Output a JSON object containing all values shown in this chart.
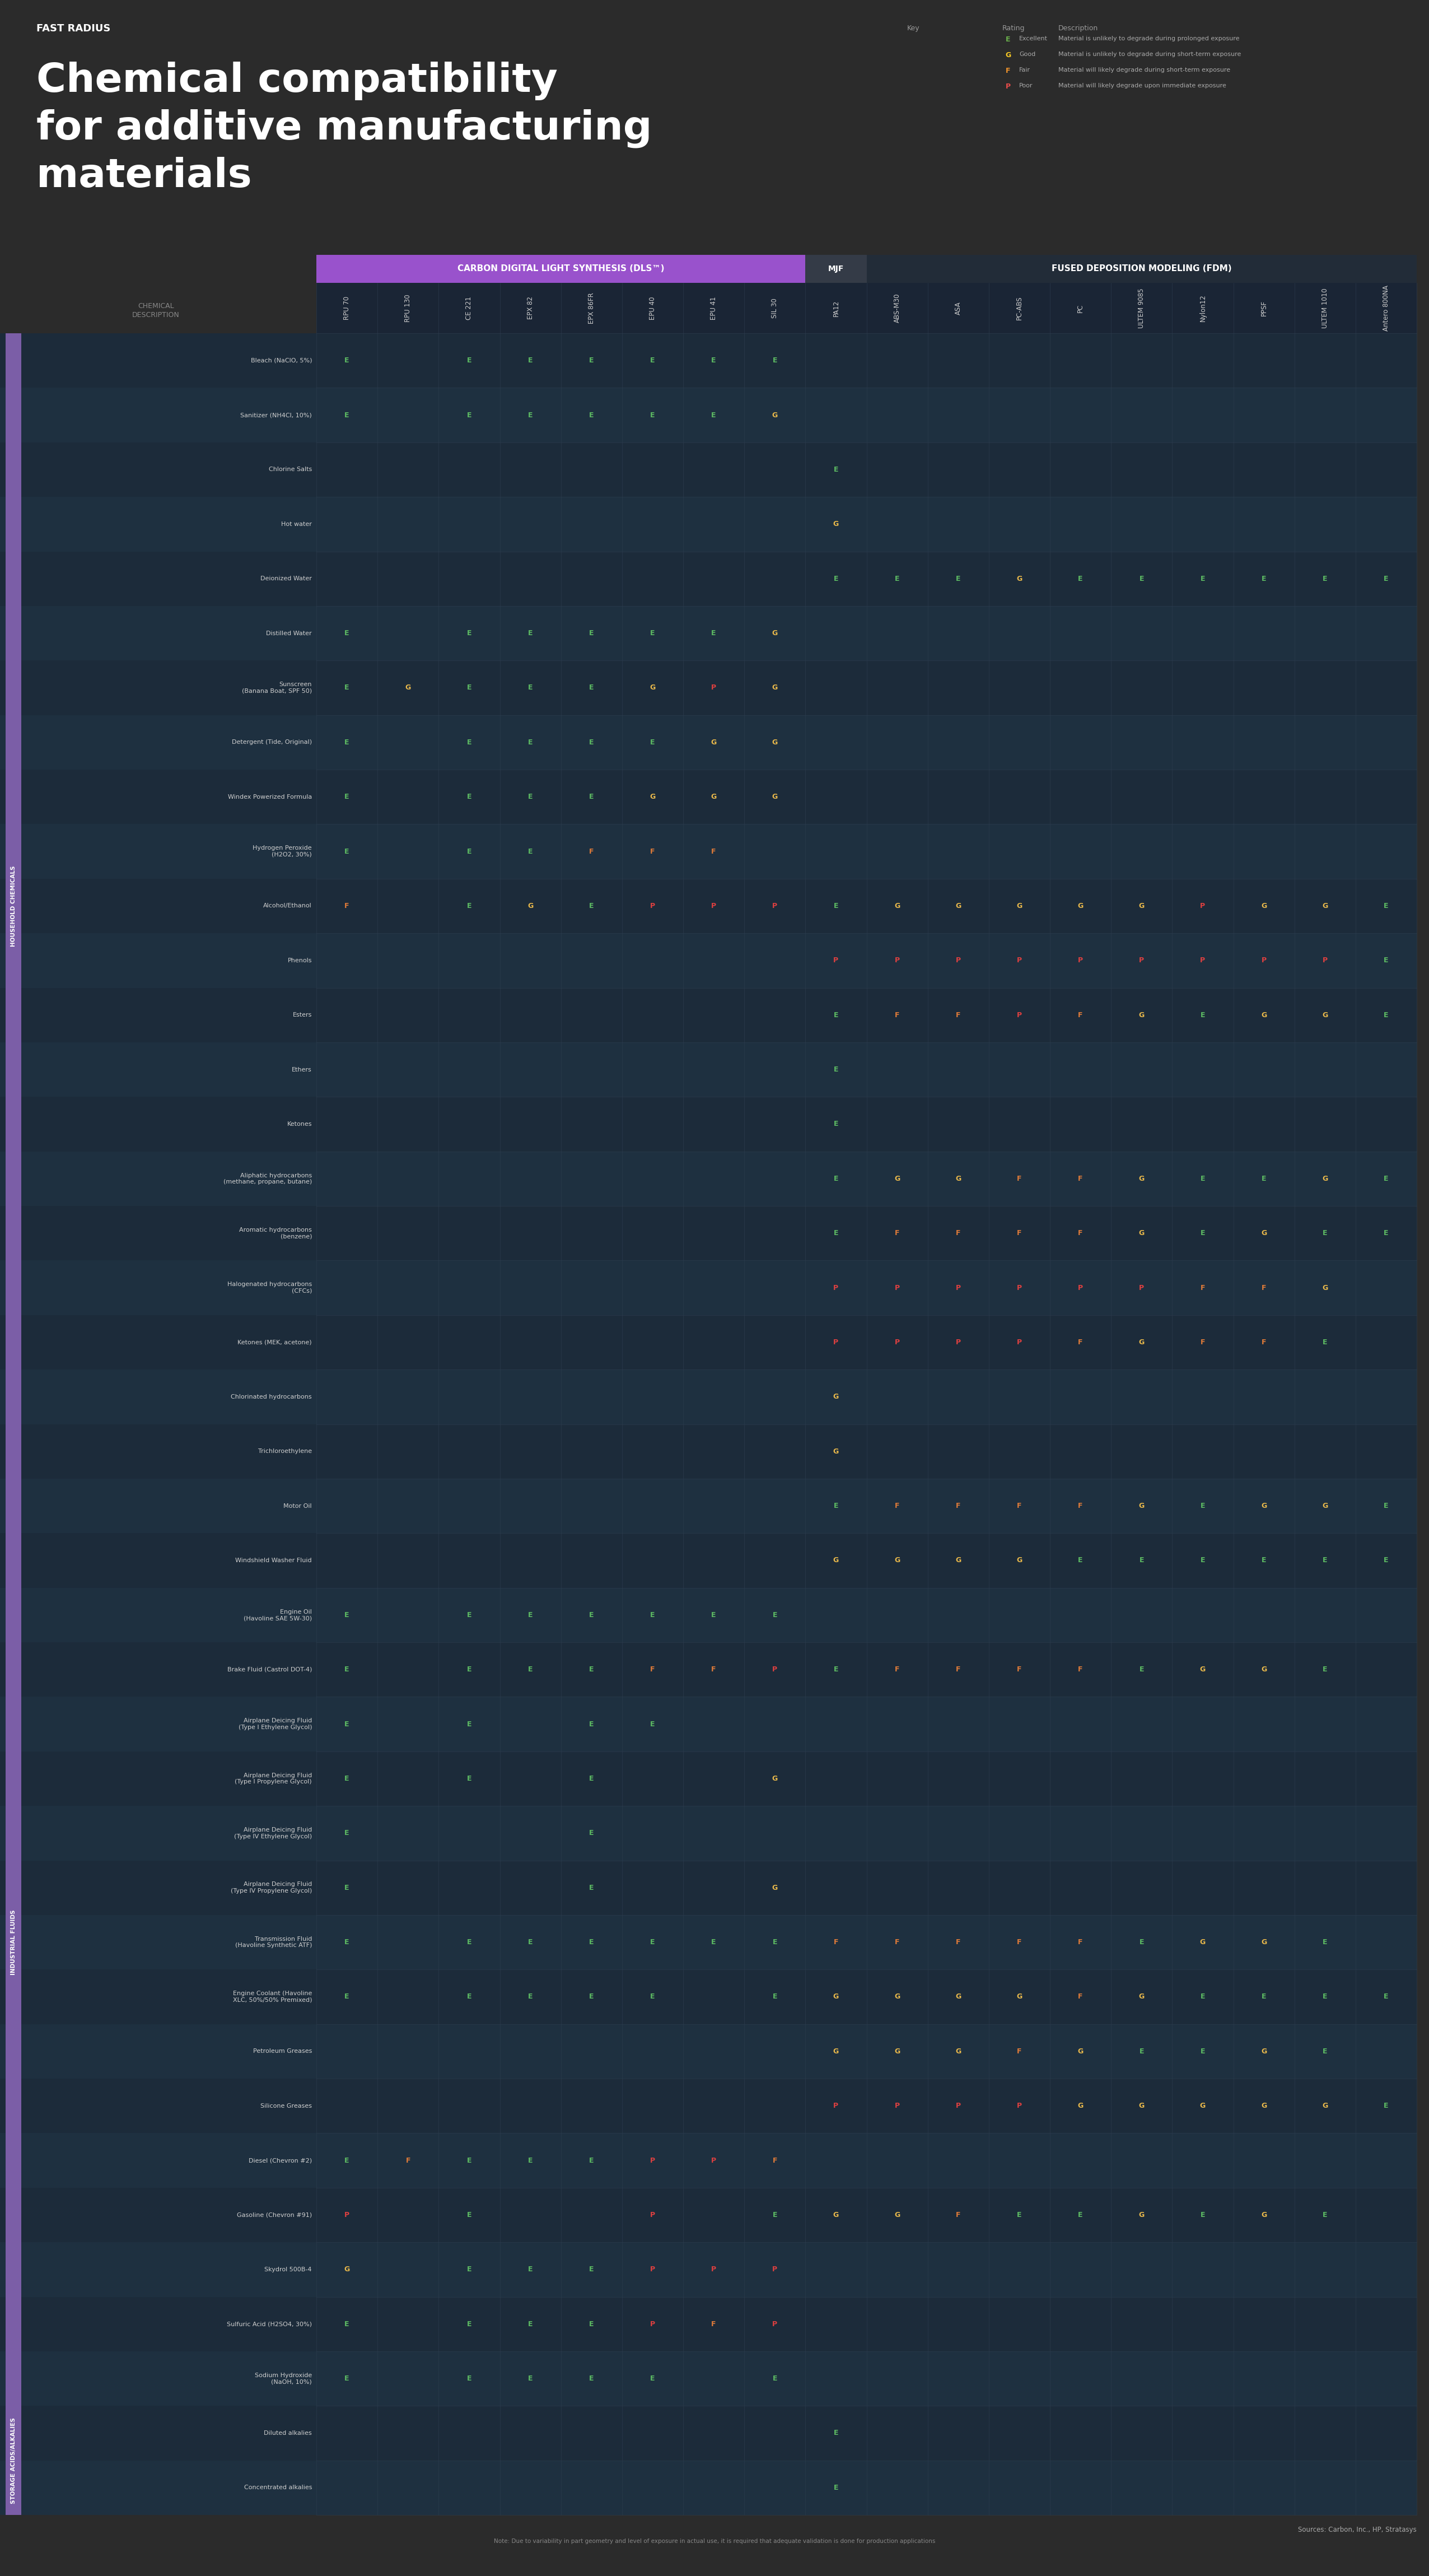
{
  "title_line1": "Chemical compatibility",
  "title_line2": "for additive manufacturing",
  "title_line3": "materials",
  "background_color": "#2b2b2b",
  "key_entries": [
    {
      "letter": "E",
      "color": "#6ab04c",
      "label": "Excellent",
      "desc": "Material is unlikely to degrade during prolonged exposure"
    },
    {
      "letter": "G",
      "color": "#f9ca24",
      "label": "Good",
      "desc": "Material is unlikely to degrade during short-term exposure"
    },
    {
      "letter": "F",
      "color": "#f0932b",
      "label": "Fair",
      "desc": "Material will likely degrade during short-term exposure"
    },
    {
      "letter": "P",
      "color": "#eb4d4b",
      "label": "Poor",
      "desc": "Material will likely degrade upon immediate exposure"
    }
  ],
  "col_group_dls": "CARBON DIGITAL LIGHT SYNTHESIS (DLS™)",
  "col_group_mjf": "MJF",
  "col_group_fdm": "FUSED DEPOSITION MODELING (FDM)",
  "col_subheaders": [
    "RPU 70",
    "RPU 130",
    "CE 221",
    "EPX 82",
    "EPX 86FR",
    "EPU 40",
    "EPU 41",
    "SIL 30",
    "PA12",
    "ABS-M30",
    "ASA",
    "PC-ABS",
    "PC",
    "ULTEM 9085",
    "Nylon12",
    "PPSF",
    "ULTEM 1010",
    "Antero 800NA"
  ],
  "dls_cols": [
    "RPU 70",
    "RPU 130",
    "CE 221",
    "EPX 82",
    "EPX 86FR",
    "EPU 40",
    "EPU 41",
    "SIL 30"
  ],
  "mjf_cols": [
    "PA12"
  ],
  "fdm_cols": [
    "ABS-M30",
    "ASA",
    "PC-ABS",
    "PC",
    "ULTEM 9085",
    "Nylon12",
    "PPSF",
    "ULTEM 1010",
    "Antero 800NA"
  ],
  "row_sections": [
    {
      "name": "HOUSEHOLD CHEMICALS",
      "rows": [
        "Bleach (NaClO, 5%)",
        "Sanitizer (NH4Cl, 10%)",
        "Chlorine Salts",
        "Hot water",
        "Deionized Water",
        "Distilled Water",
        "Sunscreen\n(Banana Boat, SPF 50)",
        "Detergent (Tide, Original)",
        "Windex Powerized Formula",
        "Hydrogen Peroxide\n(H2O2, 30%)",
        "Alcohol/Ethanol",
        "Phenols",
        "Esters",
        "Ethers",
        "Ketones",
        "Aliphatic hydrocarbons\n(methane, propane, butane)",
        "Aromatic hydrocarbons\n(benzene)",
        "Halogenated hydrocarbons\n(CFCs)",
        "Ketones (MEK, acetone)",
        "Chlorinated hydrocarbons",
        "Trichloroethylene"
      ]
    },
    {
      "name": "INDUSTRIAL FLUIDS",
      "rows": [
        "Motor Oil",
        "Windshield Washer Fluid",
        "Engine Oil\n(Havoline SAE 5W-30)",
        "Brake Fluid (Castrol DOT-4)",
        "Airplane Deicing Fluid\n(Type I Ethylene Glycol)",
        "Airplane Deicing Fluid\n(Type I Propylene Glycol)",
        "Airplane Deicing Fluid\n(Type IV Ethylene Glycol)",
        "Airplane Deicing Fluid\n(Type IV Propylene Glycol)",
        "Transmission Fluid\n(Havoline Synthetic ATF)",
        "Engine Coolant (Havoline\nXLC, 50%/50% Premixed)",
        "Petroleum Greases",
        "Silicone Greases",
        "Diesel (Chevron #2)",
        "Gasoline (Chevron #91)",
        "Skydrol 500B-4",
        "Sulfuric Acid (H2SO4, 30%)",
        "Sodium Hydroxide\n(NaOH, 10%)"
      ]
    },
    {
      "name": "STORAGE\nACIDS/ALKALIES",
      "rows": [
        "Diluted alkalies",
        "Concentrated alkalies"
      ]
    }
  ],
  "data": {
    "Bleach (NaClO, 5%)": {
      "RPU 70": "E",
      "CE 221": "E",
      "EPX 82": "E",
      "EPX 86FR": "E",
      "EPU 40": "E",
      "EPU 41": "E",
      "SIL 30": "E"
    },
    "Sanitizer (NH4Cl, 10%)": {
      "RPU 70": "E",
      "CE 221": "E",
      "EPX 82": "E",
      "EPX 86FR": "E",
      "EPU 40": "E",
      "EPU 41": "E",
      "SIL 30": "G"
    },
    "Chlorine Salts": {
      "PA12": "E"
    },
    "Hot water": {
      "PA12": "G"
    },
    "Deionized Water": {
      "PA12": "E",
      "ABS-M30": "E",
      "ASA": "E",
      "PC-ABS": "G",
      "PC": "E",
      "ULTEM 9085": "E",
      "Nylon12": "E",
      "PPSF": "E",
      "ULTEM 1010": "E",
      "Antero 800NA": "E"
    },
    "Distilled Water": {
      "RPU 70": "E",
      "CE 221": "E",
      "EPX 82": "E",
      "EPX 86FR": "E",
      "EPU 40": "E",
      "EPU 41": "E",
      "SIL 30": "G"
    },
    "Sunscreen\n(Banana Boat, SPF 50)": {
      "RPU 70": "E",
      "RPU 130": "G",
      "CE 221": "E",
      "EPX 82": "E",
      "EPX 86FR": "E",
      "EPU 40": "G",
      "EPU 41": "P",
      "SIL 30": "G"
    },
    "Detergent (Tide, Original)": {
      "RPU 70": "E",
      "CE 221": "E",
      "EPX 82": "E",
      "EPX 86FR": "E",
      "EPU 40": "E",
      "EPU 41": "G",
      "SIL 30": "G"
    },
    "Windex Powerized Formula": {
      "RPU 70": "E",
      "CE 221": "E",
      "EPX 82": "E",
      "EPX 86FR": "E",
      "EPU 40": "G",
      "EPU 41": "G",
      "SIL 30": "G"
    },
    "Hydrogen Peroxide\n(H2O2, 30%)": {
      "RPU 70": "E",
      "CE 221": "E",
      "EPX 82": "E",
      "EPX 86FR": "F",
      "EPU 40": "F",
      "EPU 41": "F"
    },
    "Alcohol/Ethanol": {
      "RPU 70": "F",
      "CE 221": "E",
      "EPX 82": "G",
      "EPX 86FR": "E",
      "EPU 40": "P",
      "EPU 41": "P",
      "SIL 30": "P",
      "PA12": "E",
      "ABS-M30": "G",
      "ASA": "G",
      "PC-ABS": "G",
      "PC": "G",
      "ULTEM 9085": "G",
      "Nylon12": "P",
      "PPSF": "G",
      "ULTEM 1010": "G",
      "Antero 800NA": "E"
    },
    "Phenols": {
      "PA12": "P",
      "ABS-M30": "P",
      "ASA": "P",
      "PC-ABS": "P",
      "PC": "P",
      "ULTEM 9085": "P",
      "Nylon12": "P",
      "PPSF": "P",
      "ULTEM 1010": "P",
      "Antero 800NA": "E"
    },
    "Esters": {
      "PA12": "E",
      "ABS-M30": "F",
      "ASA": "F",
      "PC-ABS": "P",
      "PC": "F",
      "ULTEM 9085": "G",
      "Nylon12": "E",
      "PPSF": "G",
      "ULTEM 1010": "G",
      "Antero 800NA": "E"
    },
    "Ethers": {
      "PA12": "E"
    },
    "Ketones": {
      "PA12": "E"
    },
    "Aliphatic hydrocarbons\n(methane, propane, butane)": {
      "PA12": "E",
      "ABS-M30": "G",
      "ASA": "G",
      "PC-ABS": "F",
      "PC": "F",
      "ULTEM 9085": "G",
      "Nylon12": "E",
      "PPSF": "E",
      "ULTEM 1010": "G",
      "Antero 800NA": "E"
    },
    "Aromatic hydrocarbons\n(benzene)": {
      "PA12": "E",
      "ABS-M30": "F",
      "ASA": "F",
      "PC-ABS": "F",
      "PC": "F",
      "ULTEM 9085": "G",
      "Nylon12": "E",
      "PPSF": "G",
      "ULTEM 1010": "E",
      "Antero 800NA": "E"
    },
    "Halogenated hydrocarbons\n(CFCs)": {
      "PA12": "P",
      "ABS-M30": "P",
      "ASA": "P",
      "PC-ABS": "P",
      "PC": "P",
      "ULTEM 9085": "P",
      "Nylon12": "F",
      "PPSF": "F",
      "ULTEM 1010": "G"
    },
    "Ketones (MEK, acetone)": {
      "PA12": "P",
      "ABS-M30": "P",
      "ASA": "P",
      "PC-ABS": "P",
      "PC": "F",
      "ULTEM 9085": "G",
      "Nylon12": "F",
      "PPSF": "F",
      "ULTEM 1010": "E"
    },
    "Chlorinated hydrocarbons": {
      "PA12": "G"
    },
    "Trichloroethylene": {
      "PA12": "G"
    },
    "Motor Oil": {
      "PA12": "E",
      "ABS-M30": "F",
      "ASA": "F",
      "PC-ABS": "F",
      "PC": "F",
      "ULTEM 9085": "G",
      "Nylon12": "E",
      "PPSF": "G",
      "ULTEM 1010": "G",
      "Antero 800NA": "E"
    },
    "Windshield Washer Fluid": {
      "PA12": "G",
      "ABS-M30": "G",
      "ASA": "G",
      "PC-ABS": "G",
      "PC": "E",
      "ULTEM 9085": "E",
      "Nylon12": "E",
      "PPSF": "E",
      "ULTEM 1010": "E",
      "Antero 800NA": "E"
    },
    "Engine Oil\n(Havoline SAE 5W-30)": {
      "RPU 70": "E",
      "CE 221": "E",
      "EPX 82": "E",
      "EPX 86FR": "E",
      "EPU 40": "E",
      "EPU 41": "E",
      "SIL 30": "E"
    },
    "Brake Fluid (Castrol DOT-4)": {
      "RPU 70": "E",
      "CE 221": "E",
      "EPX 82": "E",
      "EPX 86FR": "E",
      "EPU 40": "F",
      "EPU 41": "F",
      "SIL 30": "P",
      "PA12": "E",
      "ABS-M30": "F",
      "ASA": "F",
      "PC-ABS": "F",
      "PC": "F",
      "ULTEM 9085": "E",
      "Nylon12": "G",
      "PPSF": "G",
      "ULTEM 1010": "E"
    },
    "Airplane Deicing Fluid\n(Type I Ethylene Glycol)": {
      "RPU 70": "E",
      "CE 221": "E",
      "EPX 86FR": "E",
      "EPU 40": "E"
    },
    "Airplane Deicing Fluid\n(Type I Propylene Glycol)": {
      "RPU 70": "E",
      "CE 221": "E",
      "EPX 86FR": "E",
      "SIL 30": "G"
    },
    "Airplane Deicing Fluid\n(Type IV Ethylene Glycol)": {
      "RPU 70": "E",
      "EPX 86FR": "E"
    },
    "Airplane Deicing Fluid\n(Type IV Propylene Glycol)": {
      "RPU 70": "E",
      "EPX 86FR": "E",
      "SIL 30": "G"
    },
    "Transmission Fluid\n(Havoline Synthetic ATF)": {
      "RPU 70": "E",
      "CE 221": "E",
      "EPX 82": "E",
      "EPX 86FR": "E",
      "EPU 40": "E",
      "EPU 41": "E",
      "SIL 30": "E",
      "PA12": "F",
      "ABS-M30": "F",
      "ASA": "F",
      "PC-ABS": "F",
      "PC": "F",
      "ULTEM 9085": "E",
      "Nylon12": "G",
      "PPSF": "G",
      "ULTEM 1010": "E"
    },
    "Engine Coolant (Havoline\nXLC, 50%/50% Premixed)": {
      "RPU 70": "E",
      "CE 221": "E",
      "EPX 82": "E",
      "EPX 86FR": "E",
      "EPU 40": "E",
      "SIL 30": "E",
      "PA12": "G",
      "ABS-M30": "G",
      "ASA": "G",
      "PC-ABS": "G",
      "PC": "F",
      "ULTEM 9085": "G",
      "Nylon12": "E",
      "PPSF": "E",
      "ULTEM 1010": "E",
      "Antero 800NA": "E"
    },
    "Petroleum Greases": {
      "PA12": "G",
      "ABS-M30": "G",
      "ASA": "G",
      "PC-ABS": "F",
      "PC": "G",
      "ULTEM 9085": "E",
      "Nylon12": "E",
      "PPSF": "G",
      "ULTEM 1010": "E"
    },
    "Silicone Greases": {
      "PA12": "P",
      "ABS-M30": "P",
      "ASA": "P",
      "PC-ABS": "P",
      "PC": "G",
      "ULTEM 9085": "G",
      "Nylon12": "G",
      "PPSF": "G",
      "ULTEM 1010": "G",
      "Antero 800NA": "E"
    },
    "Diesel (Chevron #2)": {
      "RPU 70": "E",
      "RPU 130": "F",
      "CE 221": "E",
      "EPX 82": "E",
      "EPX 86FR": "E",
      "EPU 40": "P",
      "EPU 41": "P",
      "SIL 30": "F"
    },
    "Gasoline (Chevron #91)": {
      "RPU 70": "P",
      "CE 221": "E",
      "EPU 40": "P",
      "SIL 30": "E",
      "PA12": "G",
      "ABS-M30": "G",
      "ASA": "F",
      "PC-ABS": "E",
      "PC": "E",
      "ULTEM 9085": "G",
      "Nylon12": "E",
      "PPSF": "G",
      "ULTEM 1010": "E"
    },
    "Skydrol 500B-4": {
      "RPU 70": "G",
      "CE 221": "E",
      "EPX 82": "E",
      "EPX 86FR": "E",
      "EPU 40": "P",
      "EPU 41": "P",
      "SIL 30": "P"
    },
    "Sulfuric Acid (H2SO4, 30%)": {
      "RPU 70": "E",
      "CE 221": "E",
      "EPX 82": "E",
      "EPX 86FR": "E",
      "EPU 40": "P",
      "EPU 41": "F",
      "SIL 30": "P"
    },
    "Sodium Hydroxide\n(NaOH, 10%)": {
      "RPU 70": "E",
      "CE 221": "E",
      "EPX 82": "E",
      "EPX 86FR": "E",
      "EPU 40": "E",
      "SIL 30": "E"
    },
    "Diluted alkalies": {
      "PA12": "E"
    },
    "Concentrated alkalies": {
      "PA12": "E"
    }
  },
  "rating_colors": {
    "E": "#5dbb63",
    "G": "#e8b84b",
    "F": "#e07b39",
    "P": "#e04040"
  },
  "sources_text": "Sources: Carbon, Inc., HP, Stratasys",
  "note_text": "Note: Due to variability in part geometry and level of exposure in actual use, it is required that adequate validation is done for production applications"
}
